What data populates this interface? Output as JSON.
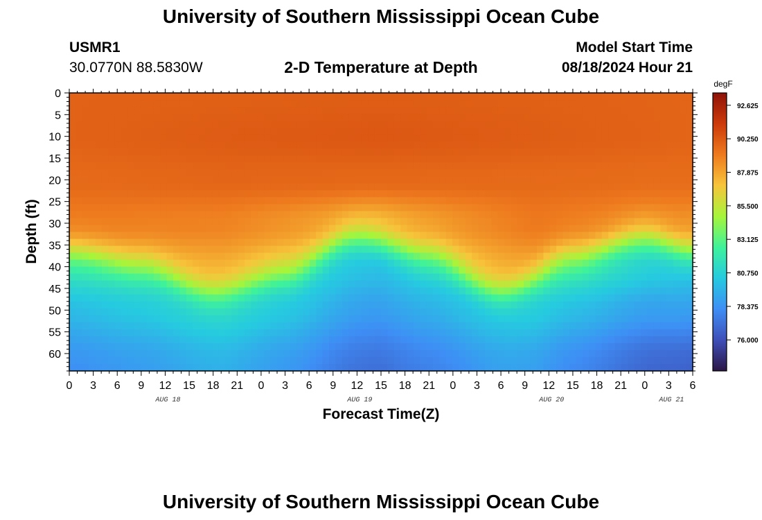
{
  "page": {
    "title": "University of Southern Mississippi Ocean Cube",
    "footer_title": "University of Southern Mississippi Ocean Cube"
  },
  "station": {
    "id": "USMR1",
    "coords": "30.0770N  88.5830W"
  },
  "model": {
    "label": "Model Start Time",
    "start": "08/18/2024 Hour 21"
  },
  "chart_data": {
    "type": "heatmap",
    "title": "2-D Temperature at Depth",
    "xlabel": "Forecast Time(Z)",
    "ylabel": "Depth (ft)",
    "x_tick_labels": [
      "0",
      "3",
      "6",
      "9",
      "12",
      "15",
      "18",
      "21",
      "0",
      "3",
      "6",
      "9",
      "12",
      "15",
      "18",
      "21",
      "0",
      "3",
      "6",
      "9",
      "12",
      "15",
      "18",
      "21",
      "0",
      "3",
      "6"
    ],
    "x_range_hours": [
      0,
      78
    ],
    "date_labels": [
      {
        "label": "AUG 18",
        "hour": 12
      },
      {
        "label": "AUG 19",
        "hour": 36
      },
      {
        "label": "AUG 20",
        "hour": 60
      },
      {
        "label": "AUG 21",
        "hour": 75
      }
    ],
    "y_ticks": [
      0,
      5,
      10,
      15,
      20,
      25,
      30,
      35,
      40,
      45,
      50,
      55,
      60
    ],
    "y_range": [
      0,
      64
    ],
    "y_inverted": true,
    "colorbar": {
      "unit": "degF",
      "ticks": [
        "92.625",
        "90.250",
        "87.875",
        "85.500",
        "83.125",
        "80.750",
        "78.375",
        "76.000"
      ],
      "range": [
        73.8,
        93.5
      ],
      "colors": [
        "#2b1645",
        "#3e4fb8",
        "#3e8ef5",
        "#26cae0",
        "#3ef29b",
        "#a6f53b",
        "#f7c53b",
        "#ee7a1e",
        "#cc3a0a",
        "#8f1208"
      ]
    },
    "depth_profile_rows": [
      {
        "depth": 0,
        "values": [
          90.5,
          90.7,
          91.0,
          90.7,
          90.3
        ]
      },
      {
        "depth": 10,
        "values": [
          90.5,
          91.2,
          91.6,
          91.0,
          90.3
        ]
      },
      {
        "depth": 20,
        "values": [
          89.8,
          90.2,
          90.0,
          89.8,
          89.5
        ]
      },
      {
        "depth": 30,
        "values": [
          88.2,
          87.5,
          84.0,
          88.5,
          86.5
        ]
      },
      {
        "depth": 40,
        "values": [
          84.0,
          84.5,
          79.5,
          86.0,
          80.0
        ]
      },
      {
        "depth": 50,
        "values": [
          80.5,
          82.5,
          78.0,
          81.5,
          77.5
        ]
      },
      {
        "depth": 60,
        "values": [
          79.0,
          80.5,
          76.5,
          79.5,
          74.5
        ]
      }
    ],
    "thermocline_depth": {
      "hours": [
        0,
        9,
        18,
        27,
        36,
        45,
        54,
        63,
        72,
        78
      ],
      "depth_ft": [
        37,
        40,
        46,
        42,
        33,
        38,
        46,
        38,
        33,
        37
      ]
    }
  }
}
